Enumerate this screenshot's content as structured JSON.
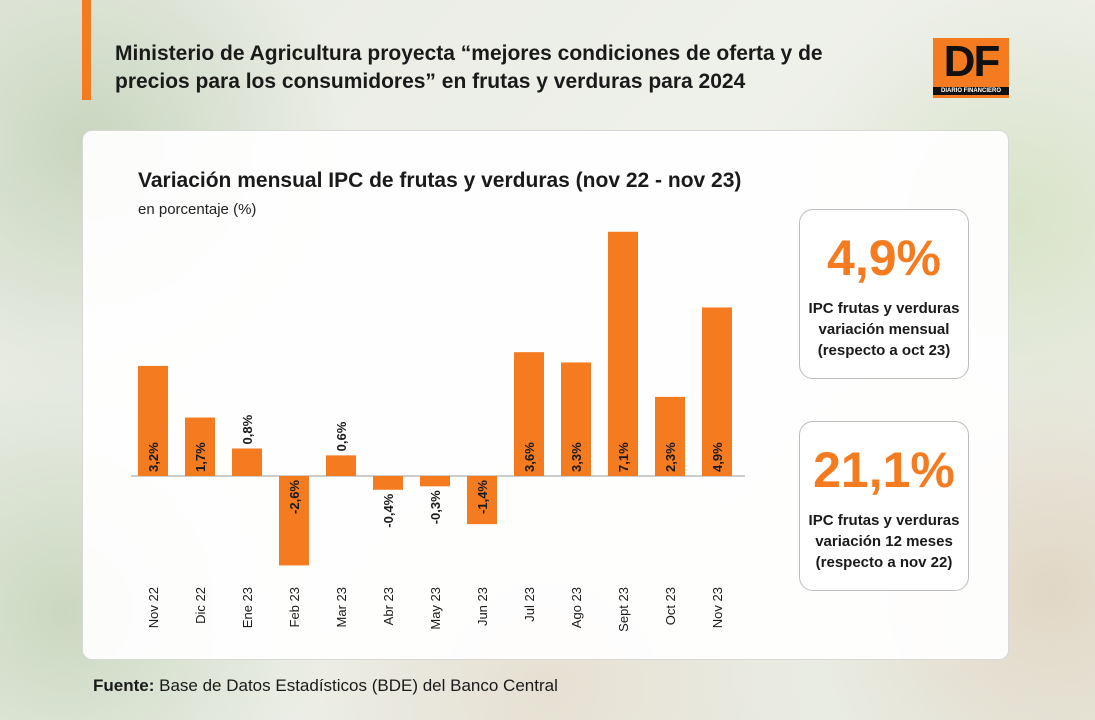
{
  "headline": "Ministerio de Agricultura proyecta “mejores condiciones de oferta y de precios para los consumidores” en frutas y verduras para 2024",
  "logo": {
    "letters": "DF",
    "subtitle": "DIARIO FINANCIERO"
  },
  "chart_data": {
    "type": "bar",
    "title": "Variación mensual IPC de frutas y verduras (nov 22 - nov 23)",
    "subtitle": "en porcentaje (%)",
    "categories": [
      "Nov 22",
      "Dic 22",
      "Ene 23",
      "Feb 23",
      "Mar 23",
      "Abr 23",
      "May 23",
      "Jun 23",
      "Jul 23",
      "Ago 23",
      "Sept 23",
      "Oct 23",
      "Nov 23"
    ],
    "values": [
      3.2,
      1.7,
      0.8,
      -2.6,
      0.6,
      -0.4,
      -0.3,
      -1.4,
      3.6,
      3.3,
      7.1,
      2.3,
      4.9
    ],
    "value_labels": [
      "3,2%",
      "1,7%",
      "0,8%",
      "-2,6%",
      "0,6%",
      "-0,4%",
      "-0,3%",
      "-1,4%",
      "3,6%",
      "3,3%",
      "7,1%",
      "2,3%",
      "4,9%"
    ],
    "bar_color": "#f47b20",
    "grid": false,
    "legend": "none"
  },
  "kpis": [
    {
      "value": "4,9%",
      "label": "IPC frutas y verduras variación mensual (respecto a oct 23)"
    },
    {
      "value": "21,1%",
      "label": "IPC frutas y verduras variación 12 meses (respecto a nov 22)"
    }
  ],
  "source": {
    "label": "Fuente:",
    "text": " Base de Datos Estadísticos (BDE) del Banco Central"
  }
}
